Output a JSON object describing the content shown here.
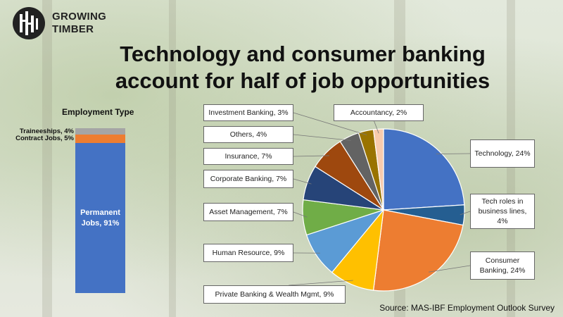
{
  "logo": {
    "line1": "GROWING",
    "line2": "TIMBER"
  },
  "title_line1": "Technology and consumer banking",
  "title_line2": "account for half of job opportunities",
  "source": "Source: MAS-IBF Employment Outlook Survey",
  "chart_data": [
    {
      "type": "bar",
      "title": "Employment Type",
      "series": [
        {
          "name": "Permanent Jobs",
          "value": 91,
          "label": "Permanent Jobs, 91%",
          "color": "#4472C4"
        },
        {
          "name": "Contract Jobs",
          "value": 5,
          "label": "Contract Jobs, 5%",
          "color": "#ED7D31"
        },
        {
          "name": "Traineeships",
          "value": 4,
          "label": "Traineeships, 4%",
          "color": "#A5A5A5"
        }
      ]
    },
    {
      "type": "pie",
      "slices": [
        {
          "name": "Technology",
          "value": 24,
          "label": "Technology, 24%",
          "color": "#4472C4"
        },
        {
          "name": "Tech roles in business lines",
          "value": 4,
          "label": "Tech roles in business lines, 4%",
          "color": "#255E91"
        },
        {
          "name": "Consumer Banking",
          "value": 24,
          "label": "Consumer Banking, 24%",
          "color": "#ED7D31"
        },
        {
          "name": "Private Banking & Wealth Mgmt",
          "value": 9,
          "label": "Private Banking & Wealth Mgmt, 9%",
          "color": "#FFC000"
        },
        {
          "name": "Human Resource",
          "value": 9,
          "label": "Human Resource, 9%",
          "color": "#5B9BD5"
        },
        {
          "name": "Asset Management",
          "value": 7,
          "label": "Asset Management, 7%",
          "color": "#70AD47"
        },
        {
          "name": "Corporate Banking",
          "value": 7,
          "label": "Corporate Banking, 7%",
          "color": "#264478"
        },
        {
          "name": "Insurance",
          "value": 7,
          "label": "Insurance, 7%",
          "color": "#9E480E"
        },
        {
          "name": "Others",
          "value": 4,
          "label": "Others, 4%",
          "color": "#636363"
        },
        {
          "name": "Investment Banking",
          "value": 3,
          "label": "Investment Banking, 3%",
          "color": "#997300"
        },
        {
          "name": "Accountancy",
          "value": 2,
          "label": "Accountancy, 2%",
          "color": "#F8CBAD"
        }
      ]
    }
  ]
}
